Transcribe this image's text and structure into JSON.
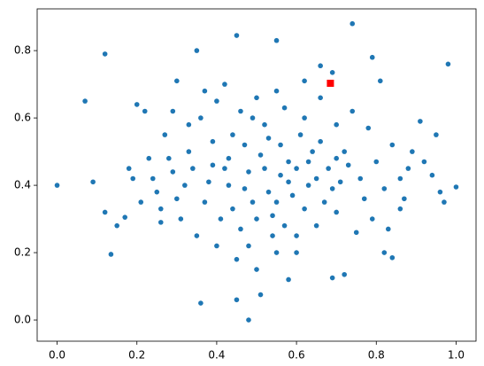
{
  "chart_data": {
    "type": "scatter",
    "xlim": [
      -0.05,
      1.05
    ],
    "ylim": [
      -0.063,
      0.924
    ],
    "xticks": [
      {
        "value": 0,
        "label": "0.0"
      },
      {
        "value": 0.2,
        "label": "0.2"
      },
      {
        "value": 0.4,
        "label": "0.4"
      },
      {
        "value": 0.6,
        "label": "0.6"
      },
      {
        "value": 0.8,
        "label": "0.8"
      },
      {
        "value": 1,
        "label": "1.0"
      }
    ],
    "yticks": [
      {
        "value": 0,
        "label": "0.0"
      },
      {
        "value": 0.2,
        "label": "0.2"
      },
      {
        "value": 0.4,
        "label": "0.4"
      },
      {
        "value": 0.6,
        "label": "0.6"
      },
      {
        "value": 0.8,
        "label": "0.8"
      }
    ],
    "grid": false,
    "series": [
      {
        "color": "#1f77b4",
        "marker": "circle",
        "x": [
          0,
          0.07,
          0.09,
          0.12,
          0.12,
          0.135,
          0.48,
          0.36,
          0.51,
          0.45,
          0.55,
          0.35,
          0.74,
          0.98,
          1.0,
          0.97,
          0.79,
          0.81,
          0.66,
          0.69,
          0.95,
          0.45,
          0.69,
          0.72,
          0.82,
          0.84,
          0.17,
          0.15,
          0.2,
          0.22,
          0.3,
          0.94,
          0.96,
          0.86,
          0.58,
          0.42,
          0.47,
          0.53,
          0.58,
          0.61,
          0.38,
          0.33,
          0.29,
          0.25,
          0.44,
          0.5,
          0.55,
          0.63,
          0.68,
          0.72,
          0.76,
          0.8,
          0.84,
          0.88,
          0.91,
          0.36,
          0.4,
          0.46,
          0.52,
          0.57,
          0.62,
          0.66,
          0.7,
          0.74,
          0.78,
          0.31,
          0.35,
          0.4,
          0.45,
          0.5,
          0.55,
          0.6,
          0.65,
          0.7,
          0.75,
          0.27,
          0.23,
          0.19,
          0.18,
          0.21,
          0.26,
          0.3,
          0.34,
          0.39,
          0.43,
          0.48,
          0.51,
          0.56,
          0.59,
          0.64,
          0.67,
          0.71,
          0.73,
          0.77,
          0.82,
          0.86,
          0.89,
          0.92,
          0.37,
          0.41,
          0.46,
          0.49,
          0.54,
          0.57,
          0.62,
          0.44,
          0.49,
          0.53,
          0.56,
          0.6,
          0.65,
          0.69,
          0.32,
          0.28,
          0.24,
          0.52,
          0.47,
          0.43,
          0.39,
          0.58,
          0.63,
          0.66,
          0.7,
          0.79,
          0.83,
          0.87,
          0.33,
          0.29,
          0.26,
          0.54,
          0.48,
          0.6,
          0.37,
          0.42,
          0.5,
          0.55,
          0.62
        ],
        "values": [
          0.4,
          0.65,
          0.41,
          0.79,
          0.32,
          0.195,
          0.0,
          0.05,
          0.075,
          0.845,
          0.83,
          0.8,
          0.88,
          0.76,
          0.395,
          0.35,
          0.78,
          0.71,
          0.755,
          0.735,
          0.55,
          0.06,
          0.125,
          0.135,
          0.2,
          0.185,
          0.305,
          0.28,
          0.64,
          0.62,
          0.71,
          0.43,
          0.38,
          0.33,
          0.12,
          0.45,
          0.52,
          0.38,
          0.47,
          0.55,
          0.41,
          0.5,
          0.44,
          0.38,
          0.33,
          0.3,
          0.35,
          0.4,
          0.45,
          0.5,
          0.42,
          0.47,
          0.52,
          0.45,
          0.59,
          0.6,
          0.65,
          0.62,
          0.58,
          0.63,
          0.6,
          0.66,
          0.58,
          0.62,
          0.57,
          0.3,
          0.25,
          0.22,
          0.18,
          0.15,
          0.2,
          0.25,
          0.28,
          0.32,
          0.26,
          0.55,
          0.48,
          0.42,
          0.45,
          0.35,
          0.29,
          0.36,
          0.45,
          0.53,
          0.4,
          0.44,
          0.49,
          0.43,
          0.37,
          0.5,
          0.35,
          0.41,
          0.46,
          0.36,
          0.39,
          0.42,
          0.5,
          0.47,
          0.35,
          0.3,
          0.27,
          0.35,
          0.31,
          0.28,
          0.33,
          0.55,
          0.6,
          0.54,
          0.52,
          0.45,
          0.42,
          0.39,
          0.4,
          0.48,
          0.42,
          0.45,
          0.39,
          0.48,
          0.46,
          0.41,
          0.47,
          0.53,
          0.48,
          0.3,
          0.27,
          0.36,
          0.58,
          0.62,
          0.33,
          0.25,
          0.22,
          0.2,
          0.68,
          0.7,
          0.66,
          0.68,
          0.71
        ]
      },
      {
        "color": "#ff0000",
        "marker": "square",
        "x": [
          0.685
        ],
        "values": [
          0.703
        ]
      }
    ]
  }
}
